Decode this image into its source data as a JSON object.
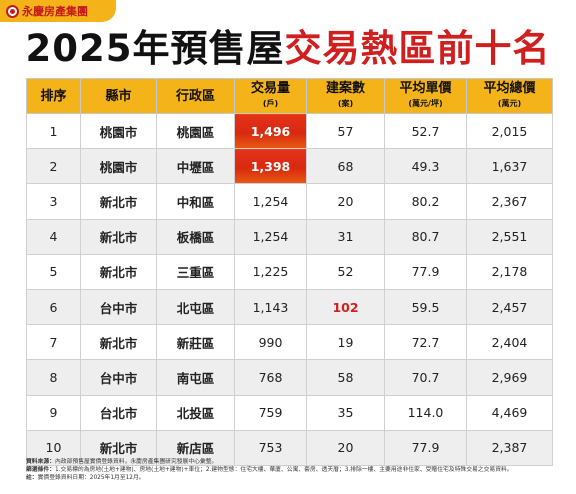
{
  "brand": {
    "name": "永慶房產集團"
  },
  "title": {
    "part1": "2025年預售屋",
    "part2": "交易熱區前十名"
  },
  "table": {
    "headers": [
      {
        "label": "排序",
        "sub": ""
      },
      {
        "label": "縣市",
        "sub": ""
      },
      {
        "label": "行政區",
        "sub": ""
      },
      {
        "label": "交易量",
        "sub": "(戶)"
      },
      {
        "label": "建案數",
        "sub": "(案)"
      },
      {
        "label": "平均單價",
        "sub": "(萬元/坪)"
      },
      {
        "label": "平均總價",
        "sub": "(萬元)"
      }
    ],
    "rows": [
      {
        "rank": "1",
        "city": "桃園市",
        "district": "桃園區",
        "volume": "1,496",
        "projects": "57",
        "unit_price": "52.7",
        "total_price": "2,015"
      },
      {
        "rank": "2",
        "city": "桃園市",
        "district": "中壢區",
        "volume": "1,398",
        "projects": "68",
        "unit_price": "49.3",
        "total_price": "1,637"
      },
      {
        "rank": "3",
        "city": "新北市",
        "district": "中和區",
        "volume": "1,254",
        "projects": "20",
        "unit_price": "80.2",
        "total_price": "2,367"
      },
      {
        "rank": "4",
        "city": "新北市",
        "district": "板橋區",
        "volume": "1,254",
        "projects": "31",
        "unit_price": "80.7",
        "total_price": "2,551"
      },
      {
        "rank": "5",
        "city": "新北市",
        "district": "三重區",
        "volume": "1,225",
        "projects": "52",
        "unit_price": "77.9",
        "total_price": "2,178"
      },
      {
        "rank": "6",
        "city": "台中市",
        "district": "北屯區",
        "volume": "1,143",
        "projects": "102",
        "unit_price": "59.5",
        "total_price": "2,457"
      },
      {
        "rank": "7",
        "city": "新北市",
        "district": "新莊區",
        "volume": "990",
        "projects": "19",
        "unit_price": "72.7",
        "total_price": "2,404"
      },
      {
        "rank": "8",
        "city": "台中市",
        "district": "南屯區",
        "volume": "768",
        "projects": "58",
        "unit_price": "70.7",
        "total_price": "2,969"
      },
      {
        "rank": "9",
        "city": "台北市",
        "district": "北投區",
        "volume": "759",
        "projects": "35",
        "unit_price": "114.0",
        "total_price": "4,469"
      },
      {
        "rank": "10",
        "city": "新北市",
        "district": "新店區",
        "volume": "753",
        "projects": "20",
        "unit_price": "77.9",
        "total_price": "2,387"
      }
    ]
  },
  "notes": {
    "source_label": "資料來源：",
    "source_text": "內政部預售屋實價登錄資料，永慶房產集團研究發展中心彙整。",
    "filter_label": "篩選條件：",
    "filter_text": "1.交易標的為房地(土地+建物)、房地(土地+建物)+車位；2.建物型態：住宅大樓、華廈、公寓、套房、透天厝；3.排除一樓、主要用途非住家、受贈住宅及特殊交易之交易資料。",
    "date_label": "註：",
    "date_text": "實價登錄資料日期：2025年1月至12月。"
  },
  "colors": {
    "accent": "#f5b31a",
    "title_red": "#d01f1f",
    "highlight": "#e4321b"
  }
}
